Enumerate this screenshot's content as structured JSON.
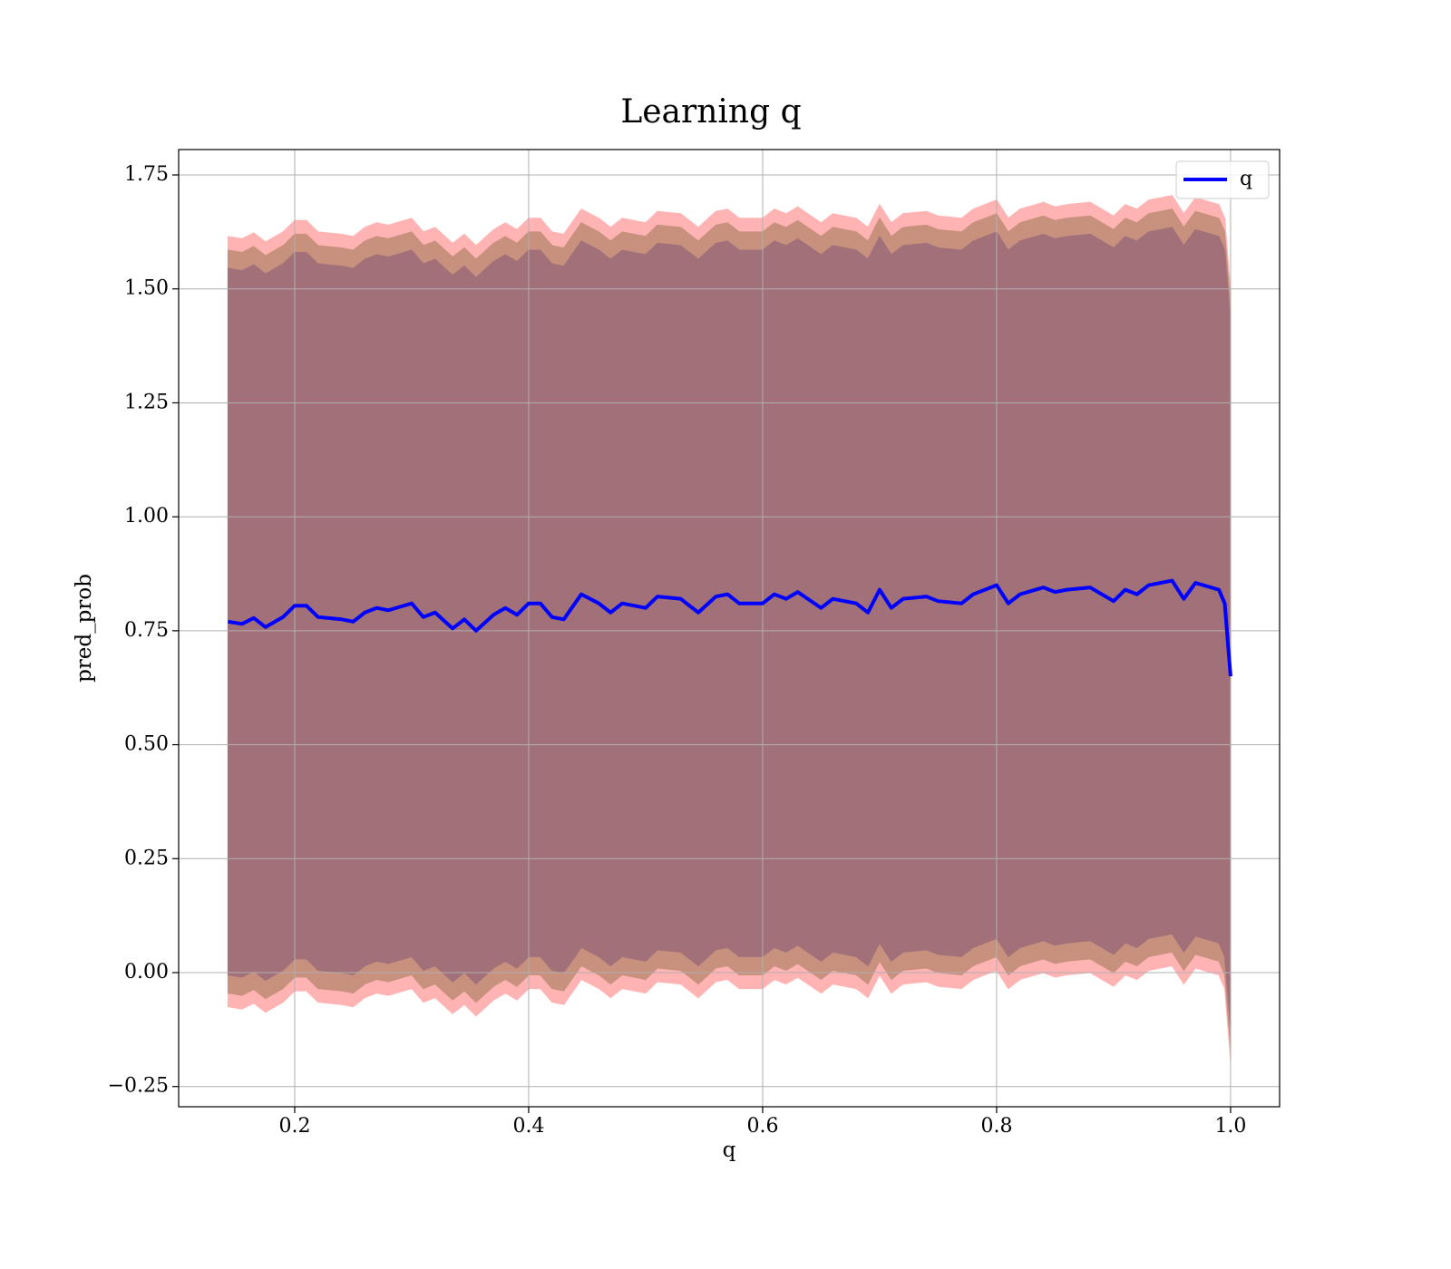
{
  "chart_data": {
    "type": "line",
    "title": "Learning q",
    "xlabel": "q",
    "ylabel": "pred_prob",
    "x": [
      0.143,
      0.155,
      0.165,
      0.175,
      0.19,
      0.2,
      0.21,
      0.22,
      0.24,
      0.25,
      0.26,
      0.27,
      0.28,
      0.3,
      0.31,
      0.32,
      0.335,
      0.345,
      0.355,
      0.37,
      0.38,
      0.39,
      0.4,
      0.41,
      0.42,
      0.43,
      0.445,
      0.46,
      0.47,
      0.48,
      0.5,
      0.51,
      0.53,
      0.545,
      0.56,
      0.57,
      0.58,
      0.6,
      0.61,
      0.62,
      0.63,
      0.65,
      0.66,
      0.68,
      0.69,
      0.7,
      0.71,
      0.72,
      0.74,
      0.75,
      0.77,
      0.78,
      0.8,
      0.81,
      0.82,
      0.84,
      0.85,
      0.86,
      0.88,
      0.9,
      0.91,
      0.92,
      0.93,
      0.95,
      0.96,
      0.97,
      0.99,
      0.995,
      1.0
    ],
    "series": [
      {
        "name": "q",
        "color": "#0000ff",
        "values": [
          0.77,
          0.765,
          0.778,
          0.758,
          0.78,
          0.805,
          0.805,
          0.78,
          0.775,
          0.77,
          0.79,
          0.8,
          0.795,
          0.81,
          0.78,
          0.79,
          0.755,
          0.775,
          0.75,
          0.785,
          0.8,
          0.785,
          0.81,
          0.81,
          0.78,
          0.775,
          0.83,
          0.81,
          0.79,
          0.81,
          0.8,
          0.825,
          0.82,
          0.79,
          0.825,
          0.83,
          0.81,
          0.81,
          0.83,
          0.82,
          0.835,
          0.8,
          0.82,
          0.81,
          0.79,
          0.84,
          0.8,
          0.82,
          0.825,
          0.815,
          0.81,
          0.83,
          0.85,
          0.81,
          0.83,
          0.845,
          0.835,
          0.84,
          0.845,
          0.815,
          0.84,
          0.83,
          0.85,
          0.86,
          0.82,
          0.855,
          0.84,
          0.81,
          0.65
        ]
      }
    ],
    "bands": [
      {
        "color": "#ffb3b3",
        "error": 0.845
      },
      {
        "color": "#c8917e",
        "error": 0.815
      },
      {
        "color": "#a27079",
        "error": 0.775
      }
    ],
    "xlim": [
      0.1008,
      1.0419
    ],
    "ylim": [
      -0.2943,
      1.8057
    ],
    "xticks": [
      0.2,
      0.4,
      0.6,
      0.8,
      {
        "value": 1.0,
        "label": "1.0"
      }
    ],
    "yticks": [
      {
        "value": -0.25,
        "label": "−0.25"
      },
      {
        "value": 0,
        "label": "0.00"
      },
      0.25,
      {
        "value": 0.5,
        "label": "0.50"
      },
      0.75,
      {
        "value": 1.0,
        "label": "1.00"
      },
      1.25,
      {
        "value": 1.5,
        "label": "1.50"
      },
      1.75
    ],
    "grid": true,
    "legend": "upper right"
  }
}
